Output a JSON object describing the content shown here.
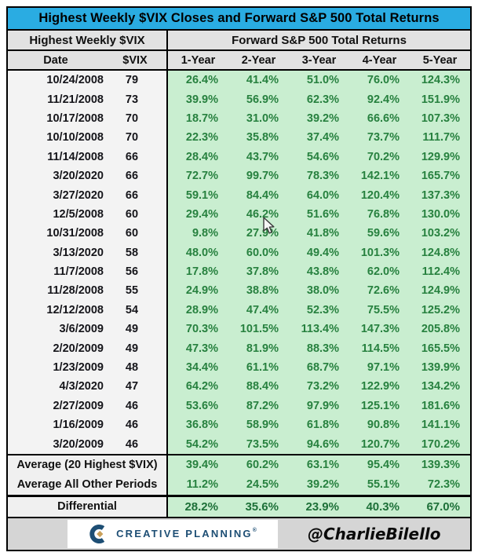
{
  "title": "Highest Weekly $VIX Closes and Forward S&P 500 Total Returns",
  "header": {
    "left_section": "Highest Weekly $VIX",
    "right_section": "Forward S&P 500 Total Returns",
    "date_col": "Date",
    "vix_col": "$VIX",
    "year_cols": [
      "1-Year",
      "2-Year",
      "3-Year",
      "4-Year",
      "5-Year"
    ]
  },
  "chart_data": {
    "type": "table",
    "title": "Highest Weekly $VIX Closes and Forward S&P 500 Total Returns",
    "column_headers": [
      "Date",
      "$VIX",
      "1-Year",
      "2-Year",
      "3-Year",
      "4-Year",
      "5-Year"
    ],
    "rows": [
      {
        "date": "10/24/2008",
        "vix": 79,
        "returns": [
          "26.4%",
          "41.4%",
          "51.0%",
          "76.0%",
          "124.3%"
        ]
      },
      {
        "date": "11/21/2008",
        "vix": 73,
        "returns": [
          "39.9%",
          "56.9%",
          "62.3%",
          "92.4%",
          "151.9%"
        ]
      },
      {
        "date": "10/17/2008",
        "vix": 70,
        "returns": [
          "18.7%",
          "31.0%",
          "39.2%",
          "66.6%",
          "107.3%"
        ]
      },
      {
        "date": "10/10/2008",
        "vix": 70,
        "returns": [
          "22.3%",
          "35.8%",
          "37.4%",
          "73.7%",
          "111.7%"
        ]
      },
      {
        "date": "11/14/2008",
        "vix": 66,
        "returns": [
          "28.4%",
          "43.7%",
          "54.6%",
          "70.2%",
          "129.9%"
        ]
      },
      {
        "date": "3/20/2020",
        "vix": 66,
        "returns": [
          "72.7%",
          "99.7%",
          "78.3%",
          "142.1%",
          "165.7%"
        ]
      },
      {
        "date": "3/27/2020",
        "vix": 66,
        "returns": [
          "59.1%",
          "84.4%",
          "64.0%",
          "120.4%",
          "137.3%"
        ]
      },
      {
        "date": "12/5/2008",
        "vix": 60,
        "returns": [
          "29.4%",
          "46.2%",
          "51.6%",
          "76.8%",
          "130.0%"
        ]
      },
      {
        "date": "10/31/2008",
        "vix": 60,
        "returns": [
          "9.8%",
          "27.9%",
          "41.8%",
          "59.6%",
          "103.2%"
        ]
      },
      {
        "date": "3/13/2020",
        "vix": 58,
        "returns": [
          "48.0%",
          "60.0%",
          "49.4%",
          "101.3%",
          "124.8%"
        ]
      },
      {
        "date": "11/7/2008",
        "vix": 56,
        "returns": [
          "17.8%",
          "37.8%",
          "43.8%",
          "62.0%",
          "112.4%"
        ]
      },
      {
        "date": "11/28/2008",
        "vix": 55,
        "returns": [
          "24.9%",
          "38.8%",
          "38.0%",
          "72.6%",
          "124.9%"
        ]
      },
      {
        "date": "12/12/2008",
        "vix": 54,
        "returns": [
          "28.9%",
          "47.4%",
          "52.3%",
          "75.5%",
          "125.2%"
        ]
      },
      {
        "date": "3/6/2009",
        "vix": 49,
        "returns": [
          "70.3%",
          "101.5%",
          "113.4%",
          "147.3%",
          "205.8%"
        ]
      },
      {
        "date": "2/20/2009",
        "vix": 49,
        "returns": [
          "47.3%",
          "81.9%",
          "88.3%",
          "114.5%",
          "165.5%"
        ]
      },
      {
        "date": "1/23/2009",
        "vix": 48,
        "returns": [
          "34.4%",
          "61.1%",
          "68.7%",
          "97.1%",
          "139.9%"
        ]
      },
      {
        "date": "4/3/2020",
        "vix": 47,
        "returns": [
          "64.2%",
          "88.4%",
          "73.2%",
          "122.9%",
          "134.2%"
        ]
      },
      {
        "date": "2/27/2009",
        "vix": 46,
        "returns": [
          "53.6%",
          "87.2%",
          "97.9%",
          "125.1%",
          "181.6%"
        ]
      },
      {
        "date": "1/16/2009",
        "vix": 46,
        "returns": [
          "36.8%",
          "58.9%",
          "61.8%",
          "90.8%",
          "141.1%"
        ]
      },
      {
        "date": "3/20/2009",
        "vix": 46,
        "returns": [
          "54.2%",
          "73.5%",
          "94.6%",
          "120.7%",
          "170.2%"
        ]
      }
    ],
    "summary_rows": [
      {
        "label": "Average (20 Highest $VIX)",
        "returns": [
          "39.4%",
          "60.2%",
          "63.1%",
          "95.4%",
          "139.3%"
        ]
      },
      {
        "label": "Average All Other Periods",
        "returns": [
          "11.2%",
          "24.5%",
          "39.2%",
          "55.1%",
          "72.3%"
        ]
      }
    ],
    "differential_row": {
      "label": "Differential",
      "returns": [
        "28.2%",
        "35.6%",
        "23.9%",
        "40.3%",
        "67.0%"
      ]
    }
  },
  "footer": {
    "logo_text": "CREATIVE PLANNING",
    "logo_mark": "®",
    "handle": "@CharlieBilello"
  },
  "colors": {
    "title_bg": "#2aace2",
    "header_bg": "#e2e2e2",
    "row_left_bg": "#f3f3f3",
    "green_bg": "#c9eed0",
    "green_text": "#27813f",
    "differential_text": "#1d7038",
    "footer_bg": "#d5d5d5",
    "logo_navy": "#1d4e74",
    "logo_gold": "#c9a05a",
    "border": "#000000"
  }
}
